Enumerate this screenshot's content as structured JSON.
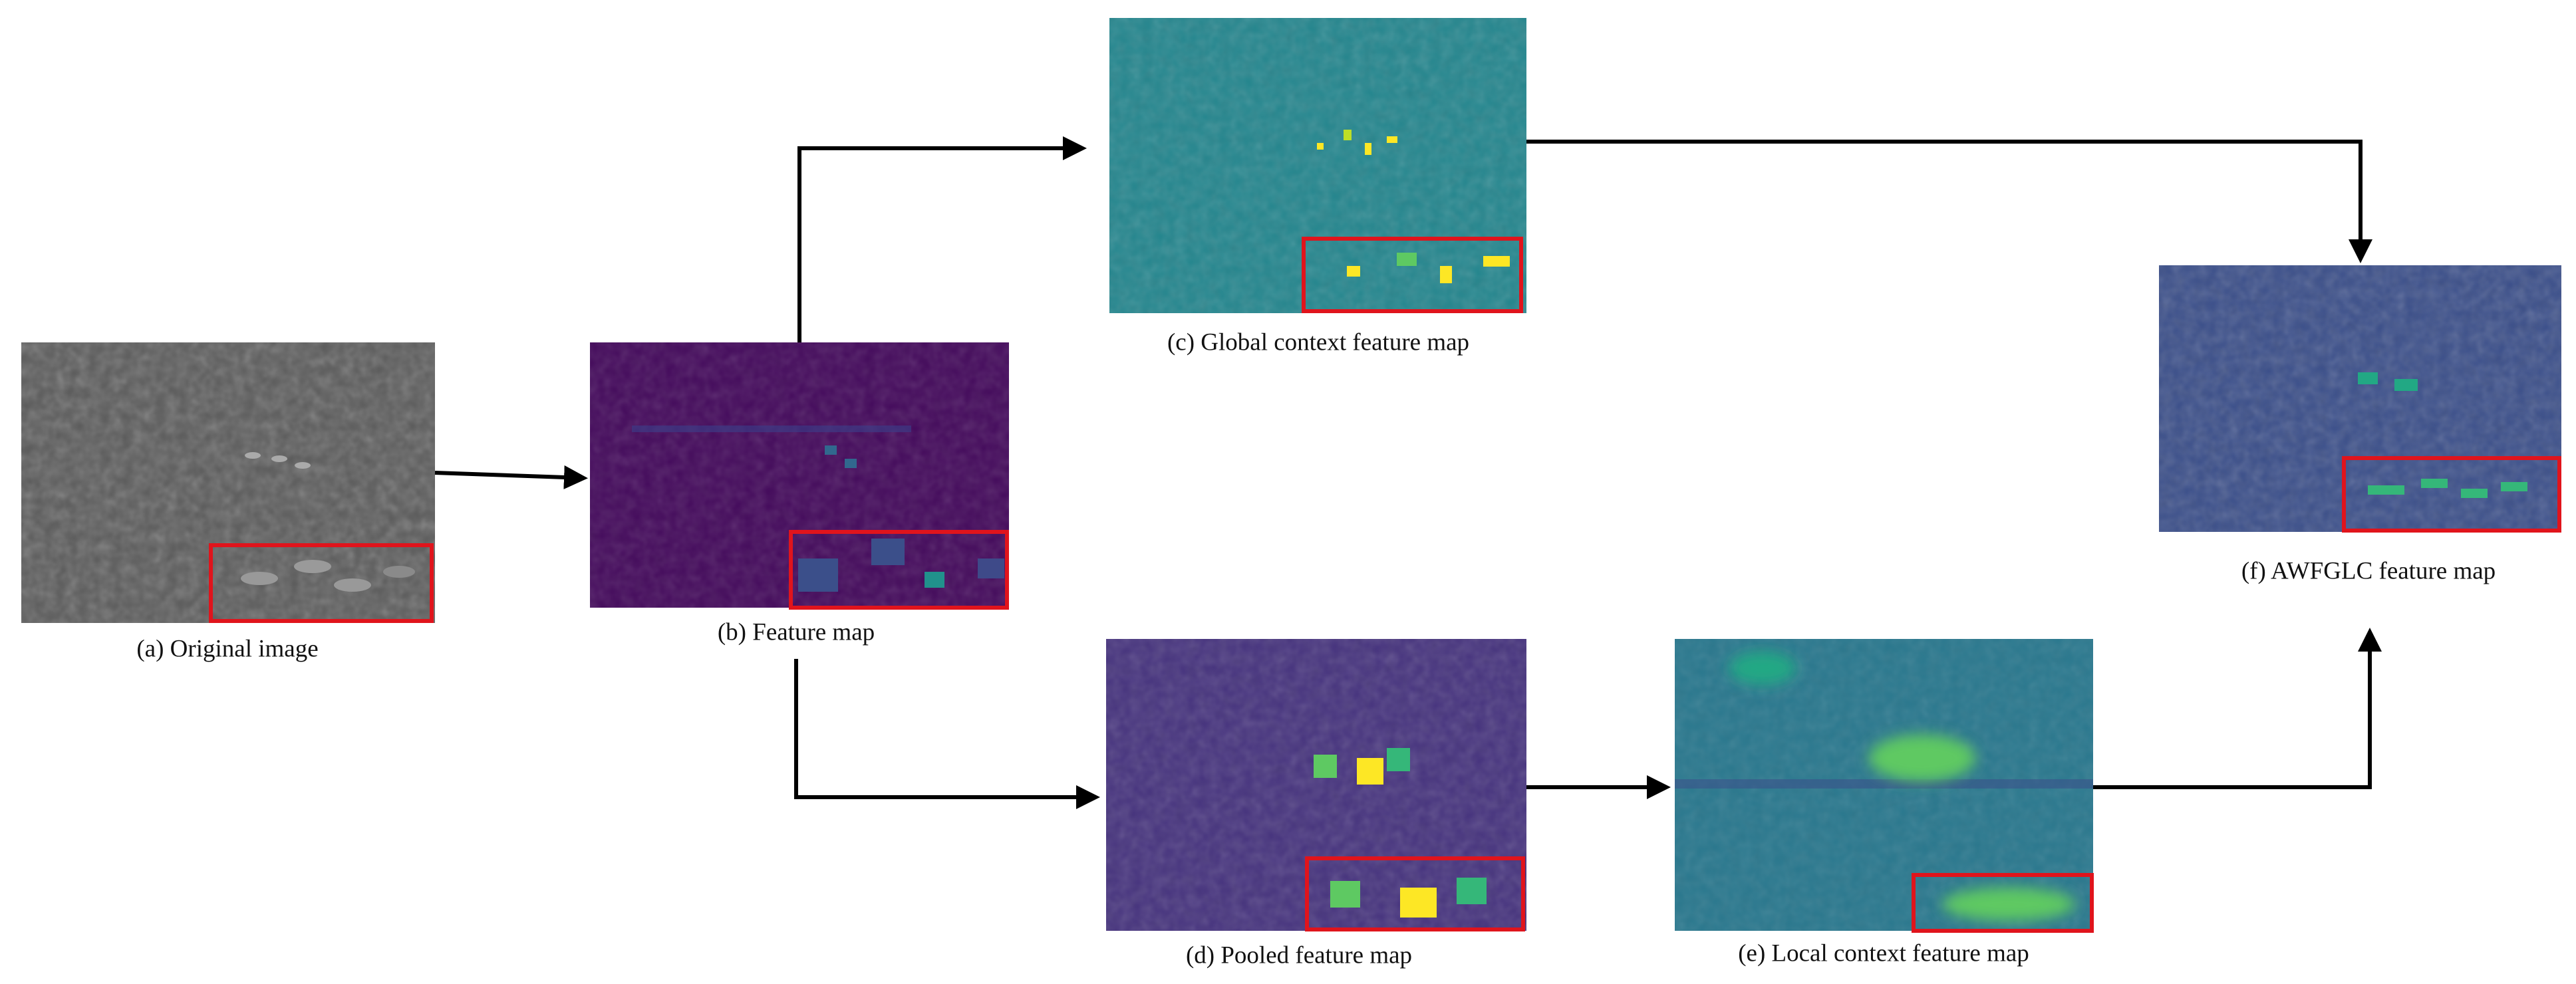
{
  "captions": {
    "a": "(a) Original image",
    "b": "(b) Feature map",
    "c": "(c) Global context feature map",
    "d": "(d) Pooled feature map",
    "e": "(e) Local context feature map",
    "f": "(f) AWFGLC feature map"
  }
}
